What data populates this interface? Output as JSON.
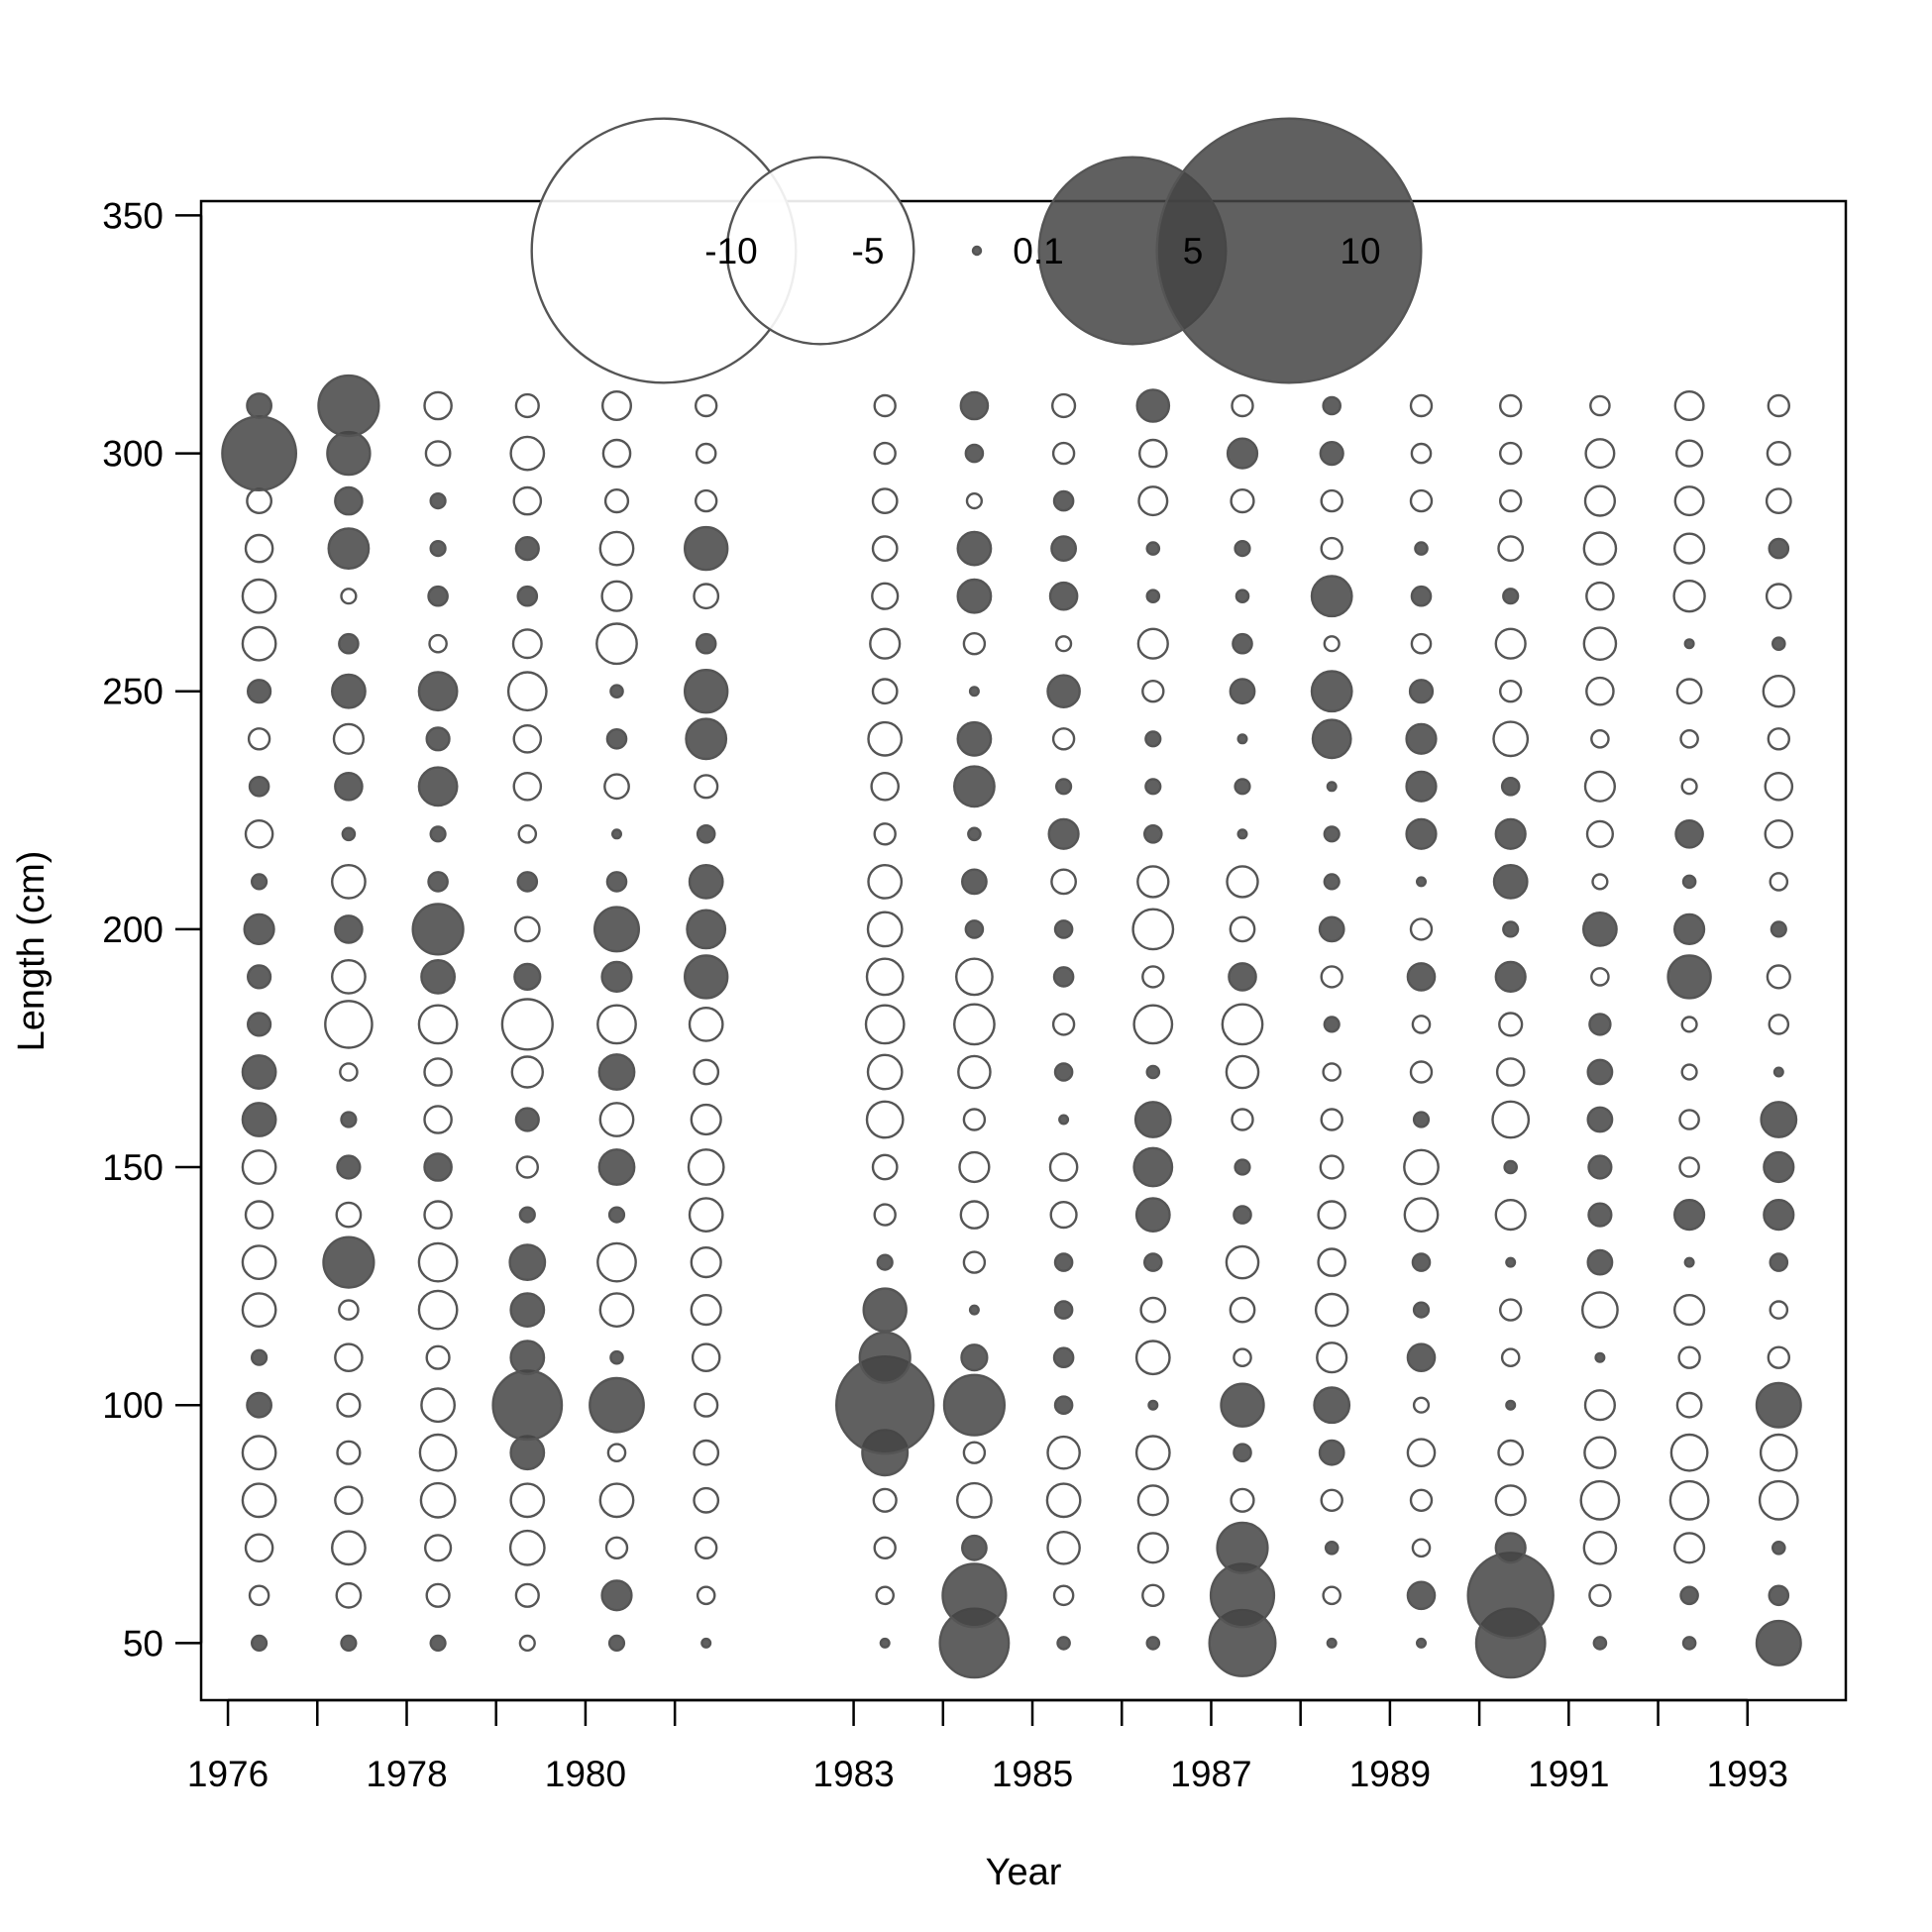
{
  "chart_data": {
    "type": "scatter",
    "subtype": "bubble",
    "xlabel": "Year",
    "ylabel": "Length (cm)",
    "x_tick_labels": [
      "1976",
      "1978",
      "1980",
      "1983",
      "1985",
      "1987",
      "1989",
      "1991",
      "1993"
    ],
    "x_tick_positions": [
      1976,
      1977,
      1978,
      1979,
      1980,
      1981,
      1983,
      1984,
      1985,
      1986,
      1987,
      1988,
      1989,
      1990,
      1991,
      1992,
      1993
    ],
    "y_ticks": [
      50,
      100,
      150,
      200,
      250,
      300,
      350
    ],
    "xlim": [
      1975.7,
      1994.1
    ],
    "ylim": [
      38,
      353
    ],
    "legend": {
      "placement": "top-center",
      "entries": [
        {
          "label": "-10",
          "value": -10
        },
        {
          "label": "-5",
          "value": -5
        },
        {
          "label": "0.1",
          "value": 0.1
        },
        {
          "label": "5",
          "value": 5
        },
        {
          "label": "10",
          "value": 10
        }
      ]
    },
    "colors": {
      "positive_fill": "#444444",
      "negative_fill": "#ffffff",
      "stroke": "#555555"
    },
    "lengths": [
      50,
      60,
      70,
      80,
      90,
      100,
      110,
      120,
      130,
      140,
      150,
      160,
      170,
      180,
      190,
      200,
      210,
      220,
      230,
      240,
      250,
      260,
      270,
      280,
      290,
      300,
      310
    ],
    "series": [
      {
        "year": 1976.35,
        "values": [
          0.3,
          -0.5,
          -1,
          -1.5,
          -1.5,
          0.8,
          0.3,
          -1.5,
          -1.5,
          -1,
          -1.5,
          1.5,
          1.5,
          0.7,
          0.7,
          1.2,
          0.3,
          -1,
          0.5,
          -0.6,
          0.7,
          -1.5,
          -1.5,
          -1,
          -0.8,
          7.5,
          0.8
        ]
      },
      {
        "year": 1977.35,
        "values": [
          0.3,
          -0.8,
          -1.5,
          -1,
          -0.7,
          -0.7,
          -1,
          -0.5,
          3.5,
          -0.8,
          0.7,
          0.3,
          -0.4,
          -3,
          -1.5,
          1,
          -1.5,
          0.2,
          1,
          -1.2,
          1.5,
          0.5,
          -0.3,
          2.2,
          1,
          2.5,
          5
        ]
      },
      {
        "year": 1978.35,
        "values": [
          0.3,
          -0.7,
          -0.9,
          -1.6,
          -1.8,
          -1.5,
          -0.7,
          -2,
          -2,
          -1,
          1,
          -1,
          -1,
          -2,
          1.5,
          3.5,
          0.5,
          0.3,
          2,
          0.7,
          2,
          -0.4,
          0.5,
          0.3,
          0.3,
          -0.8,
          -1
        ]
      },
      {
        "year": 1979.35,
        "values": [
          -0.3,
          -0.7,
          -1.6,
          -1.5,
          1.5,
          6.5,
          1.5,
          1.5,
          1.7,
          0.3,
          -0.6,
          0.7,
          -1.3,
          -3.5,
          0.9,
          -0.8,
          0.5,
          -0.4,
          -1,
          -1,
          -2,
          -1.1,
          0.5,
          0.7,
          -1,
          -1.5,
          -0.7
        ]
      },
      {
        "year": 1980.35,
        "values": [
          0.3,
          1.2,
          -0.6,
          -1.5,
          -0.4,
          4,
          0.2,
          -1.5,
          -2,
          0.3,
          1.7,
          -1.5,
          1.7,
          -2,
          1.2,
          2.7,
          0.5,
          0.1,
          -0.8,
          0.5,
          0.2,
          -2.2,
          -1.2,
          -1.5,
          -0.7,
          -1,
          -1.1
        ]
      },
      {
        "year": 1981.35,
        "values": [
          0.1,
          -0.4,
          -0.6,
          -0.8,
          -0.8,
          -0.7,
          -1,
          -1.2,
          -1.2,
          -1.5,
          -1.7,
          -1.2,
          -0.8,
          -1.5,
          2.5,
          2,
          1.5,
          0.4,
          -0.7,
          2.2,
          2.5,
          0.5,
          -0.8,
          2.5,
          -0.6,
          -0.5,
          -0.6
        ]
      },
      {
        "year": 1983.35,
        "values": [
          0.1,
          -0.4,
          -0.6,
          -0.7,
          2.8,
          13,
          3.5,
          2.5,
          0.3,
          -0.6,
          -0.8,
          -1.8,
          -1.6,
          -2,
          -1.8,
          -1.6,
          -1.5,
          -0.6,
          -1,
          -1.5,
          -0.8,
          -1.2,
          -0.9,
          -0.8,
          -0.8,
          -0.6,
          -0.6
        ]
      },
      {
        "year": 1984.35,
        "values": [
          6.5,
          5.5,
          0.8,
          -1.6,
          -0.6,
          5,
          0.9,
          0.1,
          -0.6,
          -1,
          -1.2,
          -0.6,
          -1.4,
          -2.2,
          -1.8,
          0.4,
          0.8,
          0.2,
          2.2,
          1.5,
          0.1,
          -0.6,
          1.5,
          1.5,
          -0.3,
          0.4,
          1
        ]
      },
      {
        "year": 1985.35,
        "values": [
          0.2,
          -0.5,
          -1.4,
          -1.5,
          -1.4,
          0.4,
          0.5,
          0.4,
          0.4,
          -0.9,
          -1,
          0.1,
          0.4,
          -0.6,
          0.5,
          0.4,
          -0.8,
          1.2,
          0.3,
          -0.6,
          1.4,
          -0.3,
          1,
          0.8,
          0.5,
          -0.6,
          -0.7
        ]
      },
      {
        "year": 1986.35,
        "values": [
          0.2,
          -0.6,
          -1.2,
          -1.2,
          -1.5,
          0.1,
          -1.5,
          -0.8,
          0.4,
          1.5,
          2,
          1.7,
          0.2,
          -2,
          -0.6,
          -2.2,
          -1.3,
          0.4,
          0.3,
          0.3,
          -0.6,
          -1.2,
          0.2,
          0.2,
          -1.1,
          -1,
          1.4
        ]
      },
      {
        "year": 1987.35,
        "values": [
          6,
          5.5,
          3.5,
          -0.7,
          0.4,
          2.5,
          -0.4,
          -0.8,
          -1.4,
          0.4,
          0.3,
          -0.6,
          -1.4,
          -2.2,
          1,
          -0.8,
          -1.3,
          0.1,
          0.3,
          0.1,
          0.8,
          0.5,
          0.2,
          0.3,
          -0.7,
          1.2,
          -0.6
        ]
      },
      {
        "year": 1988.35,
        "values": [
          0.1,
          -0.4,
          0.2,
          -0.6,
          0.8,
          1.7,
          -1.2,
          -1.4,
          -1,
          -1,
          -0.7,
          -0.6,
          -0.4,
          0.3,
          -0.6,
          0.8,
          0.3,
          0.3,
          0.1,
          2,
          2.2,
          -0.3,
          2.2,
          -0.6,
          -0.6,
          0.7,
          0.4
        ]
      },
      {
        "year": 1989.35,
        "values": [
          0.1,
          1,
          -0.4,
          -0.6,
          -1,
          -0.3,
          1,
          0.3,
          0.4,
          -1.5,
          -1.6,
          0.3,
          -0.6,
          -0.4,
          1,
          -0.6,
          0.1,
          1.2,
          1.2,
          1.2,
          0.7,
          -0.5,
          0.5,
          0.2,
          -0.6,
          -0.5,
          -0.6
        ]
      },
      {
        "year": 1990.35,
        "values": [
          6.5,
          10,
          1.2,
          -1.2,
          -0.8,
          0.1,
          -0.4,
          -0.6,
          0.1,
          -1.2,
          0.2,
          -1.8,
          -1,
          -0.7,
          1.2,
          0.3,
          1.5,
          1.2,
          0.4,
          -1.6,
          -0.6,
          -1.2,
          0.3,
          -0.8,
          -0.6,
          -0.6,
          -0.6
        ]
      },
      {
        "year": 1991.35,
        "values": [
          0.2,
          -0.6,
          -1.4,
          -2,
          -1.3,
          -1.2,
          0.1,
          -1.7,
          0.8,
          0.7,
          0.7,
          0.8,
          0.8,
          0.6,
          -0.4,
          1.5,
          -0.3,
          -0.9,
          -1.2,
          -0.4,
          -1,
          -1.4,
          -1,
          -1.4,
          -1.2,
          -1.1,
          -0.5
        ]
      },
      {
        "year": 1992.35,
        "values": [
          0.2,
          0.4,
          -1.2,
          -2,
          -1.8,
          -0.8,
          -0.6,
          -1.2,
          0.1,
          1.2,
          -0.5,
          -0.5,
          -0.3,
          -0.3,
          2.5,
          1.2,
          0.2,
          1,
          -0.3,
          -0.4,
          -0.8,
          0.1,
          -1.3,
          -1.2,
          -1.1,
          -0.9,
          -1.1
        ]
      },
      {
        "year": 1993.35,
        "values": [
          2.7,
          0.5,
          0.2,
          -2,
          -1.8,
          2.7,
          -0.6,
          -0.4,
          0.4,
          1.2,
          1.2,
          1.7,
          0.1,
          -0.5,
          -0.7,
          0.3,
          -0.4,
          -1,
          -1,
          -0.6,
          -1.3,
          0.2,
          -0.8,
          0.5,
          -0.8,
          -0.7,
          -0.6
        ]
      }
    ]
  }
}
